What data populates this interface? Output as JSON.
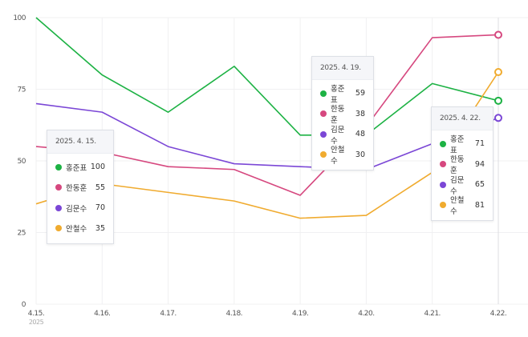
{
  "chart_data": {
    "type": "line",
    "categories": [
      "4.15.",
      "4.16.",
      "4.17.",
      "4.18.",
      "4.19.",
      "4.20.",
      "4.21.",
      "4.22."
    ],
    "year_label": "2025",
    "ylim": [
      0,
      100
    ],
    "yticks": [
      "0",
      "25",
      "50",
      "75",
      "100"
    ],
    "grid": true,
    "series": [
      {
        "name": "홍준표",
        "color": "#1db244",
        "values": [
          100,
          80,
          67,
          83,
          59,
          59,
          77,
          71
        ]
      },
      {
        "name": "한동훈",
        "color": "#d6487f",
        "values": [
          55,
          53,
          48,
          47,
          38,
          62,
          93,
          94
        ]
      },
      {
        "name": "김문수",
        "color": "#7b47d6",
        "values": [
          70,
          67,
          55,
          49,
          48,
          47,
          56,
          65
        ]
      },
      {
        "name": "안철수",
        "color": "#f0ab2f",
        "values": [
          35,
          42,
          39,
          36,
          30,
          31,
          46,
          81
        ]
      }
    ],
    "tooltips": [
      {
        "date": "2025. 4. 15.",
        "index": 0,
        "values": [
          "100",
          "55",
          "70",
          "35"
        ]
      },
      {
        "date": "2025. 4. 19.",
        "index": 4,
        "values": [
          "59",
          "38",
          "48",
          "30"
        ]
      },
      {
        "date": "2025. 4. 22.",
        "index": 7,
        "values": [
          "71",
          "94",
          "65",
          "81"
        ]
      }
    ]
  }
}
